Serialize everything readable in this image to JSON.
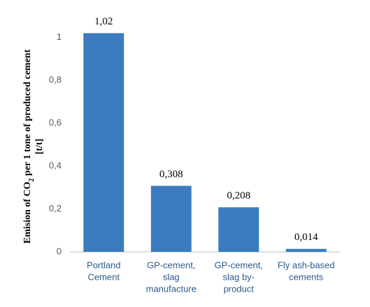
{
  "chart_data": {
    "type": "bar",
    "ylabel": [
      "Emision of CO",
      "2",
      " per 1 tone of produced cement",
      "[t/t]"
    ],
    "categories": [
      [
        "Portland",
        "Cement"
      ],
      [
        "GP-cement,",
        "slag",
        "manufacture"
      ],
      [
        "GP-cement,",
        "slag by-",
        "product"
      ],
      [
        "Fly ash-based",
        "cements"
      ]
    ],
    "values": [
      1.02,
      0.308,
      0.208,
      0.014
    ],
    "value_labels": [
      "1,02",
      "0,308",
      "0,208",
      "0,014"
    ],
    "color": "#3a7cbf",
    "ylim": [
      0,
      1.1
    ],
    "yticks": [
      0,
      {
        "value": 0.2,
        "label": "0,2"
      },
      {
        "value": 0.4,
        "label": "0,4"
      },
      {
        "value": 0.6,
        "label": "0,6"
      },
      {
        "value": 0.8,
        "label": "0,8"
      },
      1
    ]
  }
}
